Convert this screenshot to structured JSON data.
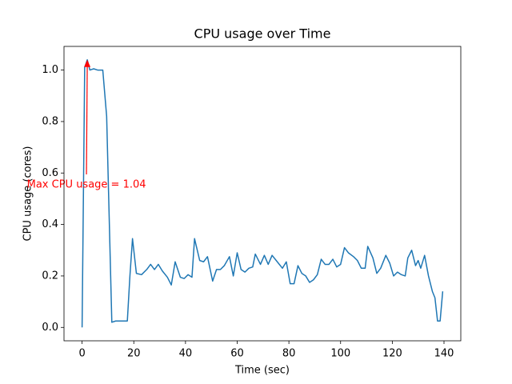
{
  "chart_data": {
    "type": "line",
    "title": "CPU usage over Time",
    "xlabel": "Time (sec)",
    "ylabel": "CPU usage (cores)",
    "x": [
      0,
      1,
      2,
      3,
      4.5,
      6,
      8,
      9.5,
      11.5,
      13,
      15,
      17.5,
      18.5,
      19.5,
      21,
      23,
      25,
      26.5,
      28,
      29.5,
      31,
      33,
      34.5,
      36,
      38,
      39.5,
      41,
      42.5,
      43.5,
      45.5,
      47,
      48.5,
      50.5,
      52,
      53.5,
      55,
      57,
      58.5,
      60,
      61.5,
      63,
      64.5,
      66,
      67,
      69,
      70.5,
      72,
      73.5,
      75.5,
      77.5,
      79,
      80.5,
      82,
      83.5,
      85,
      86.5,
      88,
      89.5,
      91,
      92.5,
      94,
      95.5,
      97,
      98.5,
      100,
      101.5,
      103,
      105,
      106.5,
      108,
      109.5,
      110.5,
      112.5,
      114,
      115.5,
      117.5,
      119,
      120.5,
      122,
      123.5,
      125,
      126,
      127.5,
      129,
      130,
      131,
      132.5,
      134,
      135.5,
      136.5,
      137.5,
      138.5,
      139.5
    ],
    "values": [
      0.0,
      1.01,
      1.04,
      1.0,
      1.005,
      1.0,
      1.0,
      0.82,
      0.02,
      0.025,
      0.025,
      0.025,
      0.2,
      0.345,
      0.21,
      0.205,
      0.225,
      0.245,
      0.225,
      0.245,
      0.22,
      0.195,
      0.165,
      0.255,
      0.195,
      0.19,
      0.205,
      0.195,
      0.345,
      0.26,
      0.255,
      0.275,
      0.18,
      0.225,
      0.225,
      0.24,
      0.275,
      0.2,
      0.29,
      0.225,
      0.215,
      0.23,
      0.235,
      0.285,
      0.245,
      0.28,
      0.245,
      0.28,
      0.255,
      0.23,
      0.255,
      0.17,
      0.17,
      0.24,
      0.21,
      0.2,
      0.175,
      0.185,
      0.205,
      0.265,
      0.245,
      0.245,
      0.265,
      0.235,
      0.245,
      0.31,
      0.29,
      0.275,
      0.26,
      0.23,
      0.23,
      0.315,
      0.27,
      0.21,
      0.23,
      0.28,
      0.25,
      0.2,
      0.215,
      0.205,
      0.2,
      0.27,
      0.3,
      0.24,
      0.26,
      0.23,
      0.28,
      0.2,
      0.14,
      0.115,
      0.025,
      0.025,
      0.14
    ],
    "color": "#1f77b4",
    "annotation": "Max CPU usage = 1.04",
    "annotation_color": "#ff0000",
    "xlim": [
      -7,
      146.5
    ],
    "xticks": [
      0,
      20,
      40,
      60,
      80,
      100,
      120,
      140
    ],
    "ylim": [
      -0.052,
      1.092
    ],
    "yticks": [
      {
        "value": 0,
        "label": "0.0"
      },
      {
        "value": 0.2,
        "label": "0.2"
      },
      {
        "value": 0.4,
        "label": "0.4"
      },
      {
        "value": 0.6,
        "label": "0.6"
      },
      {
        "value": 0.8,
        "label": "0.8"
      },
      {
        "value": 1,
        "label": "1.0"
      }
    ]
  }
}
